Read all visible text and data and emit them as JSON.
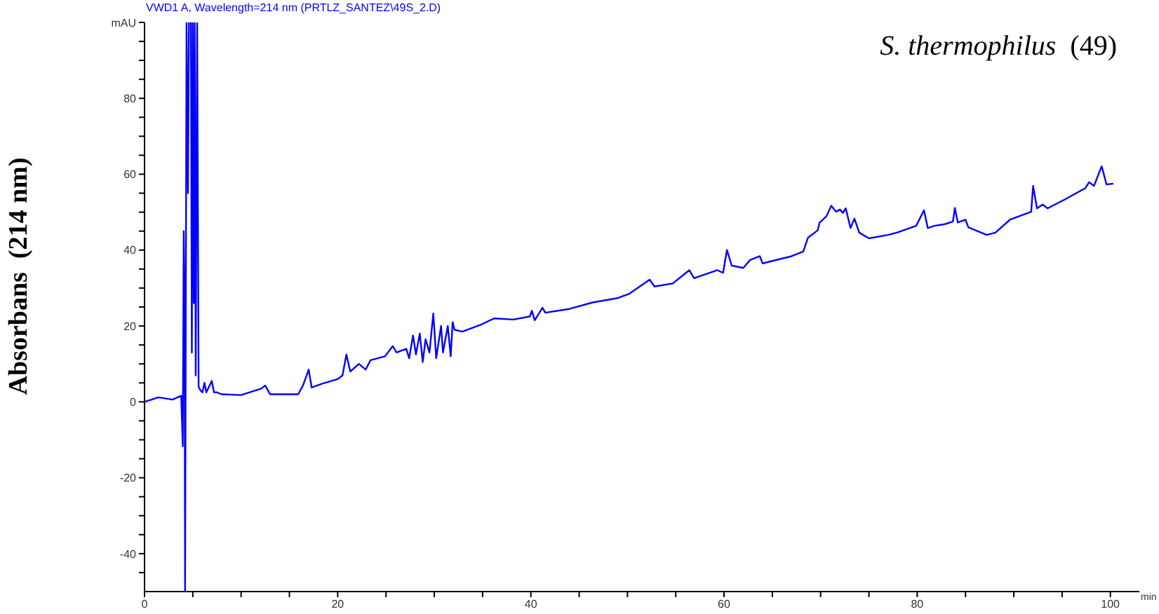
{
  "chart_data": {
    "type": "line",
    "title": "VWD1 A, Wavelength=214 nm (PRTLZ_SANTEZ\\49S_2.D)",
    "xlabel": "min",
    "ylabel": "Absorbans  (214 nm)",
    "annotations": [
      "S. thermophilus  (49)"
    ],
    "grid": false,
    "legend": false,
    "marker": "none",
    "line_style": "solid",
    "xlim": [
      0,
      103
    ],
    "ylim": [
      -50,
      100
    ],
    "xticks": [
      0,
      {
        "value": 5,
        "label": null
      },
      {
        "value": 10,
        "label": null
      },
      {
        "value": 15,
        "label": null
      },
      20,
      {
        "value": 25,
        "label": null
      },
      {
        "value": 30,
        "label": null
      },
      {
        "value": 35,
        "label": null
      },
      40,
      {
        "value": 45,
        "label": null
      },
      {
        "value": 50,
        "label": null
      },
      {
        "value": 55,
        "label": null
      },
      60,
      {
        "value": 65,
        "label": null
      },
      {
        "value": 70,
        "label": null
      },
      {
        "value": 75,
        "label": null
      },
      80,
      {
        "value": 85,
        "label": null
      },
      {
        "value": 90,
        "label": null
      },
      {
        "value": 95,
        "label": null
      },
      100
    ],
    "yticks": [
      {
        "value": -45,
        "label": null
      },
      -40,
      {
        "value": -35,
        "label": null
      },
      {
        "value": -30,
        "label": null
      },
      {
        "value": -25,
        "label": null
      },
      -20,
      {
        "value": -15,
        "label": null
      },
      {
        "value": -10,
        "label": null
      },
      {
        "value": -5,
        "label": null
      },
      0,
      {
        "value": 5,
        "label": null
      },
      {
        "value": 10,
        "label": null
      },
      {
        "value": 15,
        "label": null
      },
      20,
      {
        "value": 25,
        "label": null
      },
      {
        "value": 30,
        "label": null
      },
      {
        "value": 35,
        "label": null
      },
      40,
      {
        "value": 45,
        "label": null
      },
      {
        "value": 50,
        "label": null
      },
      {
        "value": 55,
        "label": null
      },
      60,
      {
        "value": 65,
        "label": null
      },
      {
        "value": 70,
        "label": null
      },
      {
        "value": 75,
        "label": null
      },
      80,
      {
        "value": 85,
        "label": null
      },
      {
        "value": 90,
        "label": null
      },
      {
        "value": 95,
        "label": null
      },
      {
        "value": 100,
        "label": "mAU"
      }
    ],
    "series": [
      {
        "color": "#0000ff",
        "x": [
          0,
          1.45,
          2.9,
          3.8,
          3.96,
          4.06,
          4.15,
          4.2,
          4.35,
          4.5,
          4.6,
          4.8,
          4.9,
          5.0,
          5.1,
          5.2,
          5.3,
          5.45,
          5.6,
          5.8,
          6.0,
          6.2,
          6.4,
          6.96,
          7.2,
          7.5,
          8,
          10,
          12.1,
          12.5,
          13,
          15.9,
          16.4,
          17.0,
          17.3,
          18.4,
          20,
          20.5,
          20.9,
          21.3,
          22.2,
          22.9,
          23.4,
          24.9,
          25.7,
          26.1,
          27.1,
          27.4,
          27.8,
          28.1,
          28.5,
          28.8,
          29.1,
          29.5,
          29.9,
          30.2,
          30.7,
          30.9,
          31.4,
          31.7,
          31.9,
          32.1,
          32.9,
          34.8,
          36.2,
          38.2,
          39.9,
          40.1,
          40.4,
          41.2,
          41.5,
          44,
          46.4,
          48.9,
          50.2,
          52.3,
          52.8,
          54.7,
          56.4,
          56.9,
          59.3,
          59.9,
          60.3,
          60.8,
          62.0,
          62.7,
          63.7,
          64.0,
          67.0,
          68.2,
          68.7,
          69.7,
          69.9,
          70.6,
          71.1,
          71.6,
          72.0,
          72.3,
          72.6,
          73.1,
          73.5,
          74.0,
          75.0,
          77.0,
          77.9,
          79.9,
          80.7,
          81.1,
          81.8,
          82.8,
          83.7,
          83.9,
          84.2,
          85.0,
          85.3,
          87.2,
          88.1,
          89.6,
          91.8,
          92.0,
          92.4,
          93.0,
          93.5,
          95.4,
          97.4,
          97.8,
          98.3,
          99.1,
          99.6,
          100.3
        ],
        "values": [
          0,
          1.2,
          0.6,
          1.6,
          -11.7,
          45,
          23,
          -50,
          100,
          55,
          100,
          100,
          13,
          100,
          26,
          100,
          7,
          100,
          4,
          3,
          2.5,
          5,
          2.5,
          5.5,
          2.5,
          2.5,
          2,
          1.8,
          3.5,
          4.3,
          2,
          2,
          4.3,
          8.5,
          3.8,
          4.8,
          6,
          7,
          12.5,
          8,
          10,
          8.5,
          11,
          12,
          14.7,
          13,
          14,
          11.5,
          17.5,
          12.5,
          18,
          10.5,
          16.5,
          13,
          23.3,
          11.5,
          20,
          13,
          20,
          12,
          21,
          19,
          18.5,
          20.3,
          22,
          21.7,
          22.5,
          24,
          21.5,
          24.8,
          23.5,
          24.5,
          26.2,
          27.3,
          28.5,
          32.2,
          30.4,
          31.2,
          34.7,
          32.6,
          34.7,
          34,
          40,
          35.9,
          35.3,
          37.4,
          38.4,
          36.5,
          38.4,
          39.6,
          43.3,
          45.2,
          47.3,
          48.9,
          51.7,
          50.1,
          50.7,
          49.8,
          51,
          45.8,
          48.3,
          44.6,
          43.1,
          44,
          44.6,
          46.4,
          50.5,
          45.8,
          46.4,
          46.8,
          47.5,
          51.1,
          47.3,
          48,
          46,
          44,
          44.6,
          48,
          50.1,
          56.9,
          51,
          52,
          51,
          53.5,
          56.3,
          57.9,
          56.9,
          62.1,
          57.3,
          57.5
        ]
      }
    ]
  }
}
